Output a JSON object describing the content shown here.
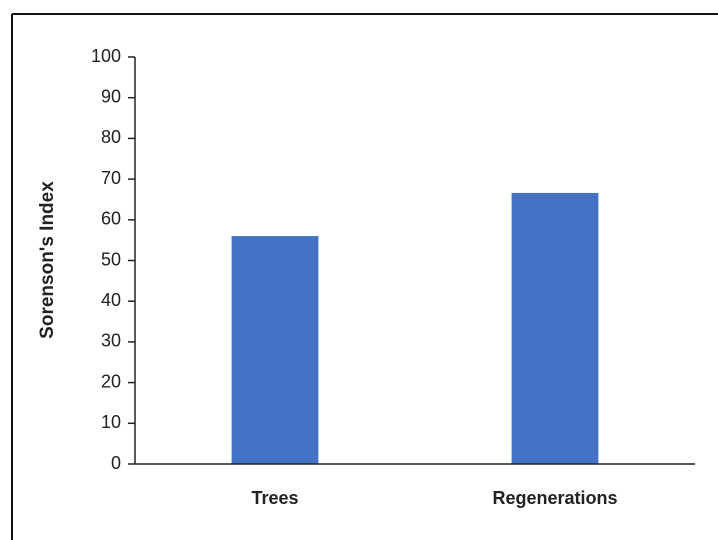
{
  "chart_data": {
    "type": "bar",
    "y_label": "Sorenson's Index",
    "categories": [
      "Trees",
      "Regenerations"
    ],
    "values": [
      56,
      66.6
    ],
    "color": "#4472c4",
    "ylim": [
      0,
      100
    ],
    "yticks": [
      0,
      10,
      20,
      30,
      40,
      50,
      60,
      70,
      80,
      90,
      100
    ],
    "grid": false
  }
}
